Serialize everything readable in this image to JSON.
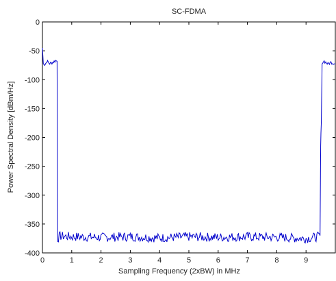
{
  "chart_data": {
    "type": "line",
    "title": "SC-FDMA",
    "xlabel": "Sampling Frequency (2xBW) in MHz",
    "ylabel": "Power Spectral Density [dBm/Hz]",
    "xlim": [
      0,
      10
    ],
    "ylim": [
      -400,
      0
    ],
    "xticks": [
      0,
      1,
      2,
      3,
      4,
      5,
      6,
      7,
      8,
      9
    ],
    "yticks": [
      0,
      -50,
      -100,
      -150,
      -200,
      -250,
      -300,
      -350,
      -400
    ],
    "grid": false,
    "line_color": "#0000cc",
    "series": [
      {
        "x": [
          0,
          0.03,
          0.08,
          0.15,
          0.25,
          0.35,
          0.45,
          0.5,
          0.52,
          0.6,
          1,
          2,
          3,
          4,
          5,
          6,
          7,
          8,
          9,
          9.4,
          9.48,
          9.5,
          9.52,
          9.55,
          9.62,
          9.75,
          9.85,
          10
        ],
        "y": [
          -45,
          -70,
          -75,
          -68,
          -72,
          -70,
          -67,
          -68,
          -375,
          -371,
          -372,
          -373,
          -372,
          -374,
          -372,
          -373,
          -372,
          -373,
          -375,
          -372,
          -370,
          -215,
          -175,
          -70,
          -68,
          -73,
          -70,
          -72
        ]
      }
    ]
  }
}
